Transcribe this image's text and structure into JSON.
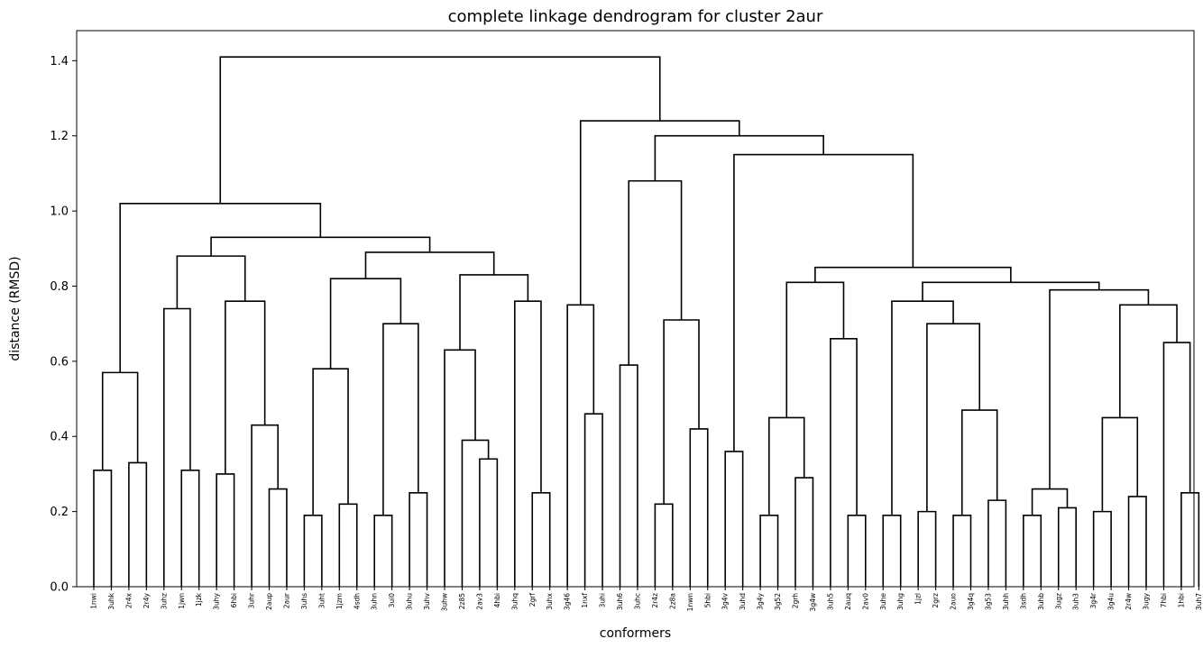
{
  "chart_data": {
    "type": "dendrogram",
    "title": "complete linkage dendrogram for cluster 2aur",
    "xlabel": "conformers",
    "ylabel": "distance (RMSD)",
    "ylim": [
      0,
      1.48
    ],
    "yticks": [
      "0.0",
      "0.2",
      "0.4",
      "0.6",
      "0.8",
      "1.0",
      "1.2",
      "1.4"
    ],
    "grid": false,
    "link_color": "#000000",
    "leaves": [
      "1nwi",
      "3uhk",
      "2r4x",
      "2r4y",
      "3uhz",
      "1jwn",
      "1jzk",
      "3uhy",
      "6hbi",
      "3uhr",
      "2aup",
      "2aur",
      "3uhs",
      "3uht",
      "1jzm",
      "4sdh",
      "3uhn",
      "3ui0",
      "3uhu",
      "3uhv",
      "3uhw",
      "2z85",
      "2av3",
      "4hbi",
      "3uhq",
      "2grf",
      "3uhx",
      "3g46",
      "1nxf",
      "3uhi",
      "3uh6",
      "3uhc",
      "2r4z",
      "2z8a",
      "1nwn",
      "5hbi",
      "3g4v",
      "3uhd",
      "3g4y",
      "3g52",
      "2grh",
      "3g4w",
      "3uh5",
      "2auq",
      "2av0",
      "3uhe",
      "3uhg",
      "1jzl",
      "2grz",
      "2auo",
      "3g4q",
      "3g53",
      "3uhh",
      "3sdh",
      "3uhb",
      "3ugz",
      "3uh3",
      "3g4r",
      "3g4u",
      "2r4w",
      "3ugy",
      "7hbi",
      "1hbi",
      "3uh7"
    ],
    "merges": [
      {
        "a": 0,
        "b": 1,
        "height": 0.31
      },
      {
        "a": 2,
        "b": 3,
        "height": 0.33
      },
      {
        "a": "m0",
        "b": "m1",
        "height": 0.57
      },
      {
        "a": 5,
        "b": 6,
        "height": 0.31
      },
      {
        "a": 4,
        "b": "m3",
        "height": 0.74
      },
      {
        "a": 7,
        "b": 8,
        "height": 0.3
      },
      {
        "a": 10,
        "b": 11,
        "height": 0.26
      },
      {
        "a": 9,
        "b": "m6",
        "height": 0.43
      },
      {
        "a": "m5",
        "b": "m7",
        "height": 0.76
      },
      {
        "a": "m4",
        "b": "m8",
        "height": 0.88
      },
      {
        "a": 12,
        "b": 13,
        "height": 0.19
      },
      {
        "a": 14,
        "b": 15,
        "height": 0.22
      },
      {
        "a": "m10",
        "b": "m11",
        "height": 0.58
      },
      {
        "a": 16,
        "b": 17,
        "height": 0.19
      },
      {
        "a": 18,
        "b": 19,
        "height": 0.25
      },
      {
        "a": "m13",
        "b": "m14",
        "height": 0.7
      },
      {
        "a": "m12",
        "b": "m15",
        "height": 0.82
      },
      {
        "a": 22,
        "b": 23,
        "height": 0.34
      },
      {
        "a": 21,
        "b": "m17",
        "height": 0.39
      },
      {
        "a": 20,
        "b": "m18",
        "height": 0.63
      },
      {
        "a": 25,
        "b": 26,
        "height": 0.25
      },
      {
        "a": 24,
        "b": "m20",
        "height": 0.76
      },
      {
        "a": "m19",
        "b": "m21",
        "height": 0.83
      },
      {
        "a": "m16",
        "b": "m22",
        "height": 0.89
      },
      {
        "a": "m9",
        "b": "m23",
        "height": 0.93
      },
      {
        "a": "m2",
        "b": "m24",
        "height": 1.02
      },
      {
        "a": 28,
        "b": 29,
        "height": 0.46
      },
      {
        "a": 27,
        "b": "m26",
        "height": 0.75
      },
      {
        "a": 30,
        "b": 31,
        "height": 0.59
      },
      {
        "a": 32,
        "b": 33,
        "height": 0.22
      },
      {
        "a": 34,
        "b": 35,
        "height": 0.42
      },
      {
        "a": "m29",
        "b": "m30",
        "height": 0.71
      },
      {
        "a": "m28",
        "b": "m31",
        "height": 1.08
      },
      {
        "a": 36,
        "b": 37,
        "height": 0.36
      },
      {
        "a": 38,
        "b": 39,
        "height": 0.19
      },
      {
        "a": 40,
        "b": 41,
        "height": 0.29
      },
      {
        "a": "m34",
        "b": "m35",
        "height": 0.45
      },
      {
        "a": 43,
        "b": 44,
        "height": 0.19
      },
      {
        "a": 42,
        "b": "m37",
        "height": 0.66
      },
      {
        "a": "m36",
        "b": "m38",
        "height": 0.81
      },
      {
        "a": 45,
        "b": 46,
        "height": 0.19
      },
      {
        "a": 47,
        "b": 48,
        "height": 0.2
      },
      {
        "a": 49,
        "b": 50,
        "height": 0.19
      },
      {
        "a": 51,
        "b": 52,
        "height": 0.23
      },
      {
        "a": "m42",
        "b": "m43",
        "height": 0.47
      },
      {
        "a": "m41",
        "b": "m44",
        "height": 0.7
      },
      {
        "a": "m40",
        "b": "m45",
        "height": 0.76
      },
      {
        "a": 53,
        "b": 54,
        "height": 0.19
      },
      {
        "a": 55,
        "b": 56,
        "height": 0.21
      },
      {
        "a": "m47",
        "b": "m48",
        "height": 0.26
      },
      {
        "a": 57,
        "b": 58,
        "height": 0.2
      },
      {
        "a": 59,
        "b": 60,
        "height": 0.24
      },
      {
        "a": "m50",
        "b": "m51",
        "height": 0.45
      },
      {
        "a": 62,
        "b": 63,
        "height": 0.25
      },
      {
        "a": 61,
        "b": "m53",
        "height": 0.65
      },
      {
        "a": "m52",
        "b": "m54",
        "height": 0.75
      },
      {
        "a": "m49",
        "b": "m55",
        "height": 0.79
      },
      {
        "a": "m46",
        "b": "m56",
        "height": 0.81
      },
      {
        "a": "m39",
        "b": "m57",
        "height": 0.85
      },
      {
        "a": "m33",
        "b": "m58",
        "height": 1.15
      },
      {
        "a": "m32",
        "b": "m59",
        "height": 1.2
      },
      {
        "a": "m27",
        "b": "m60",
        "height": 1.24
      },
      {
        "a": "m25",
        "b": "m61",
        "height": 1.41
      }
    ]
  }
}
